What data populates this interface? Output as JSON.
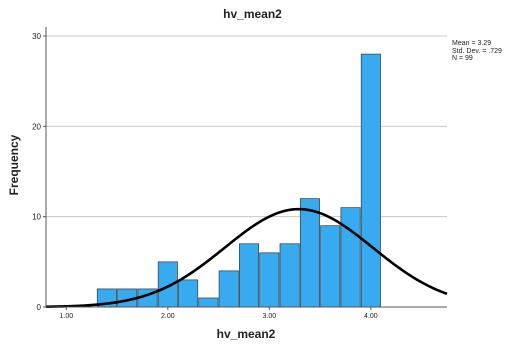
{
  "chart_data": {
    "type": "bar",
    "title": "hv_mean2",
    "xlabel": "hv_mean2",
    "ylabel": "Frequency",
    "xlim": [
      0.8,
      4.75
    ],
    "ylim": [
      0,
      31
    ],
    "grid": true,
    "x_ticks": [
      1.0,
      2.0,
      3.0,
      4.0
    ],
    "x_tick_labels": [
      "1.00",
      "2.00",
      "3.00",
      "4.00"
    ],
    "y_ticks": [
      0,
      10,
      20,
      30
    ],
    "y_tick_labels": [
      "0",
      "10",
      "20",
      "30"
    ],
    "bins": [
      {
        "x0": 1.3,
        "x1": 1.5,
        "value": 2
      },
      {
        "x0": 1.5,
        "x1": 1.7,
        "value": 2
      },
      {
        "x0": 1.7,
        "x1": 1.9,
        "value": 2
      },
      {
        "x0": 1.9,
        "x1": 2.1,
        "value": 5
      },
      {
        "x0": 2.1,
        "x1": 2.3,
        "value": 3
      },
      {
        "x0": 2.3,
        "x1": 2.5,
        "value": 1
      },
      {
        "x0": 2.5,
        "x1": 2.7,
        "value": 4
      },
      {
        "x0": 2.7,
        "x1": 2.9,
        "value": 7
      },
      {
        "x0": 2.9,
        "x1": 3.1,
        "value": 6
      },
      {
        "x0": 3.1,
        "x1": 3.3,
        "value": 7
      },
      {
        "x0": 3.3,
        "x1": 3.5,
        "value": 12
      },
      {
        "x0": 3.5,
        "x1": 3.7,
        "value": 9
      },
      {
        "x0": 3.7,
        "x1": 3.9,
        "value": 11
      },
      {
        "x0": 3.9,
        "x1": 4.1,
        "value": 28
      }
    ],
    "normal_curve": {
      "mean": 3.29,
      "sd": 0.729,
      "n": 99,
      "bin_width": 0.2
    },
    "stats_lines": [
      "Mean = 3.29",
      "Std. Dev. = .729",
      "N = 99"
    ],
    "colors": {
      "bar_fill": "#38aaf0",
      "bar_stroke": "#3a3a3a",
      "curve": "#000000",
      "grid": "#c8c8c8",
      "axis": "#555555"
    }
  }
}
